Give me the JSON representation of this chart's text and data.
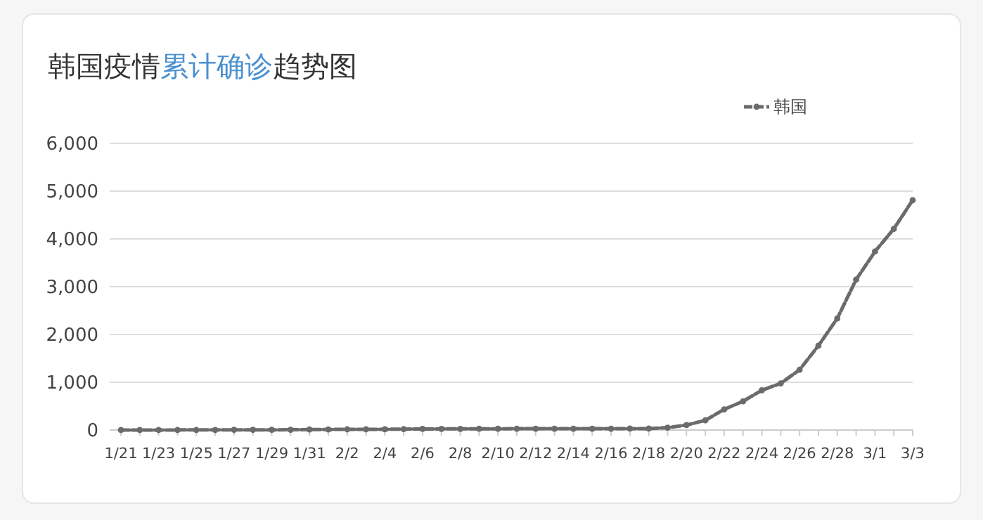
{
  "chart_data": {
    "type": "line",
    "title": "韩国疫情累计确诊趋势图",
    "categories": [
      "1/21",
      null,
      "1/23",
      null,
      "1/25",
      null,
      "1/27",
      null,
      "1/29",
      null,
      "1/31",
      null,
      "2/2",
      null,
      "2/4",
      null,
      "2/6",
      null,
      "2/8",
      null,
      "2/10",
      null,
      "2/12",
      null,
      "2/14",
      null,
      "2/16",
      null,
      "2/18",
      null,
      "2/20",
      null,
      "2/22",
      null,
      "2/24",
      null,
      "2/26",
      null,
      "2/28",
      null,
      "3/1",
      null,
      "3/3"
    ],
    "series": [
      {
        "name": "韩国",
        "color": "#6b6b6b",
        "values": [
          1,
          1,
          1,
          2,
          2,
          3,
          4,
          4,
          4,
          6,
          11,
          12,
          15,
          15,
          16,
          19,
          23,
          24,
          24,
          27,
          27,
          28,
          28,
          28,
          28,
          28,
          29,
          30,
          31,
          51,
          104,
          204,
          433,
          602,
          833,
          977,
          1261,
          1766,
          2337,
          3150,
          3736,
          4212,
          4812
        ]
      }
    ],
    "ylim": [
      0,
      6000
    ],
    "yticks": [
      {
        "value": 0,
        "label": "0"
      },
      {
        "value": 1000,
        "label": "1,000"
      },
      {
        "value": 2000,
        "label": "2,000"
      },
      {
        "value": 3000,
        "label": "3,000"
      },
      {
        "value": 4000,
        "label": "4,000"
      },
      {
        "value": 5000,
        "label": "5,000"
      },
      {
        "value": 6000,
        "label": "6,000"
      }
    ],
    "grid": "y",
    "legend": "top right",
    "marker": "circle",
    "line_style": "dashed"
  }
}
